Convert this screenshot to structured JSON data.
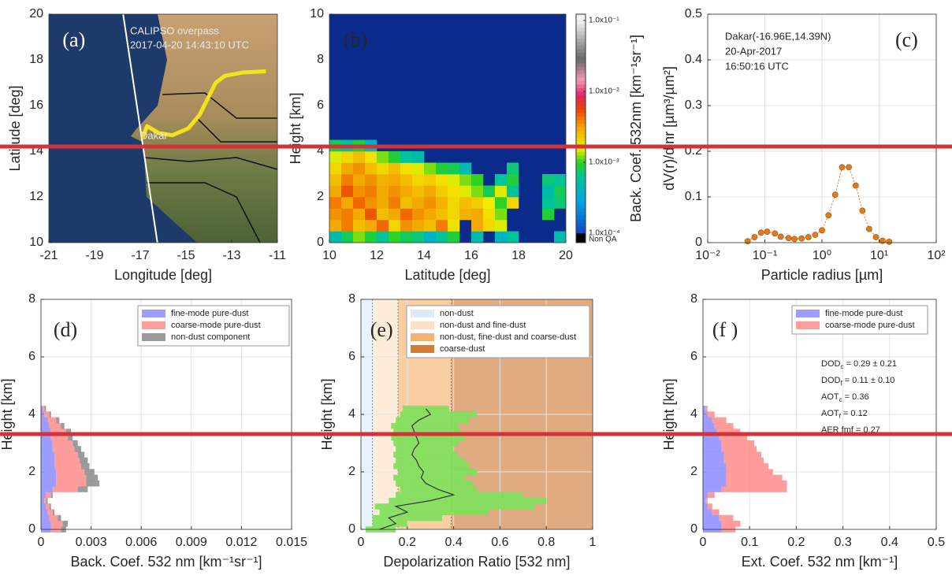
{
  "chart_data": [
    {
      "type": "map",
      "label": "(a)",
      "x_label": "Longitude [deg]",
      "y_label": "Latitude [deg]",
      "xlim": [
        -21,
        -11
      ],
      "xticks": [
        -21,
        -19,
        -17,
        -15,
        -13,
        -11
      ],
      "ylim": [
        10,
        20
      ],
      "yticks": [
        10,
        12,
        14,
        16,
        18,
        20
      ],
      "annotations": [
        "CALIPSO overpass",
        "2017-04-20 14:43:10 UTC",
        "Dakar"
      ],
      "series": [
        {
          "color": "#ffffff",
          "x": [
            -17.75,
            -16.25
          ],
          "y": [
            20,
            10
          ]
        },
        {
          "color": "#f2e41a",
          "x": [
            -16.9,
            -16.7,
            -16.2,
            -15.6,
            -14.9,
            -14.4,
            -14.0,
            -13.7,
            -13.3,
            -12.5,
            -11.5
          ],
          "y": [
            14.6,
            15.1,
            14.8,
            14.7,
            15.0,
            15.6,
            16.4,
            17.0,
            17.3,
            17.45,
            17.5
          ]
        }
      ]
    },
    {
      "type": "heatmap",
      "label": "(b)",
      "x_label": "Latitude [deg]",
      "y_label": "Height [km]",
      "xlim": [
        10,
        20
      ],
      "xticks": [
        10,
        12,
        14,
        16,
        18,
        20
      ],
      "ylim": [
        0,
        10
      ],
      "yticks": [
        0,
        2,
        4,
        6,
        8,
        10
      ],
      "x_bins": [
        10,
        10.5,
        11,
        11.5,
        12,
        12.5,
        13,
        13.5,
        14,
        14.5,
        15,
        15.5,
        16,
        16.5,
        17,
        17.5,
        18,
        18.5,
        19,
        19.5,
        20
      ],
      "y_bins": [
        0,
        0.5,
        1,
        1.5,
        2,
        2.5,
        3,
        3.5,
        4,
        4.5
      ],
      "values": [
        [
          0.0005,
          0.0008,
          0.0012,
          0.0009,
          0.0006,
          0.001,
          0.0008,
          0.0007,
          0.0004,
          0.0006,
          0.0009,
          null,
          0.0005,
          null,
          0.0004,
          0.0006,
          null,
          null,
          null,
          0.0005
        ],
        [
          0.003,
          0.004,
          0.0025,
          0.003,
          0.0045,
          0.002,
          0.0035,
          0.003,
          0.0025,
          0.004,
          0.0018,
          null,
          0.003,
          0.002,
          0.0015,
          null,
          null,
          null,
          null,
          null
        ],
        [
          0.0035,
          0.004,
          0.003,
          0.005,
          0.0025,
          0.003,
          0.0045,
          0.0035,
          0.003,
          0.0025,
          0.002,
          0.0028,
          0.003,
          0.0018,
          0.0012,
          null,
          null,
          null,
          0.0009,
          null
        ],
        [
          0.004,
          0.003,
          0.0045,
          0.0035,
          0.003,
          0.004,
          0.0025,
          0.003,
          0.0035,
          0.0028,
          0.002,
          0.0025,
          0.0022,
          0.0016,
          0.001,
          0.002,
          null,
          null,
          0.0006,
          0.0007
        ],
        [
          0.003,
          0.005,
          0.0035,
          0.004,
          0.003,
          0.0035,
          0.003,
          0.0025,
          0.003,
          0.0022,
          0.0018,
          0.0015,
          0.0012,
          0.0008,
          0.0015,
          0.0006,
          null,
          null,
          0.0005,
          0.0008
        ],
        [
          0.0025,
          0.004,
          0.003,
          0.0035,
          0.0028,
          0.003,
          0.0025,
          0.002,
          0.0022,
          0.0018,
          0.0015,
          0.0012,
          0.001,
          null,
          0.0006,
          0.0009,
          null,
          null,
          0.0007,
          0.0006
        ],
        [
          0.002,
          0.003,
          0.0035,
          0.0025,
          0.002,
          0.0025,
          0.0018,
          0.0015,
          0.0012,
          0.0009,
          0.0008,
          0.0005,
          null,
          null,
          null,
          0.0007,
          null,
          null,
          null,
          null
        ],
        [
          0.0015,
          0.002,
          0.0025,
          0.0018,
          0.0012,
          0.0009,
          0.0006,
          0.0005,
          null,
          null,
          null,
          null,
          null,
          null,
          null,
          null,
          null,
          null,
          null,
          null
        ],
        [
          0.0008,
          0.0006,
          0.0009,
          0.0004,
          null,
          null,
          null,
          null,
          null,
          null,
          null,
          null,
          null,
          null,
          null,
          null,
          null,
          null,
          null,
          null
        ]
      ],
      "colorbar": {
        "label": "Back. Coef. 532nm [km⁻¹sr⁻¹]",
        "log": true,
        "clim": [
          0.0001,
          0.1
        ],
        "ticks": [
          {
            "value": 0.1,
            "label": "1.0x10⁻¹"
          },
          {
            "value": 0.01,
            "label": "1.0x10⁻²"
          },
          {
            "value": 0.001,
            "label": "1.0x10⁻³"
          },
          {
            "value": 0.0001,
            "label": "1.0x10⁻⁴"
          }
        ],
        "nodata_label": "Non QA"
      }
    },
    {
      "type": "scatter",
      "label": "(c)",
      "x_label": "Particle radius [µm]",
      "y_label": "dV(r)/dlnr [µm³/µm²]",
      "xlog": true,
      "grid": true,
      "color": "#e07b1a",
      "xlim": [
        0.01,
        100
      ],
      "xticks": [
        {
          "value": 0.01,
          "label": "10⁻²"
        },
        {
          "value": 0.1,
          "label": "10⁻¹"
        },
        {
          "value": 1,
          "label": "10⁰"
        },
        {
          "value": 10,
          "label": "10¹"
        },
        {
          "value": 100,
          "label": "10²"
        }
      ],
      "ylim": [
        0,
        0.5
      ],
      "yticks": [
        0,
        0.1,
        0.2,
        0.3,
        0.4,
        0.5
      ],
      "annotations": [
        "Dakar(-16.96E,14.39N)",
        "20-Apr-2017",
        "16:50:16 UTC"
      ],
      "x": [
        0.05,
        0.066,
        0.086,
        0.11,
        0.15,
        0.19,
        0.26,
        0.33,
        0.44,
        0.58,
        0.76,
        1.0,
        1.3,
        1.7,
        2.25,
        2.95,
        3.9,
        5.1,
        6.7,
        8.8,
        11.5,
        15
      ],
      "y": [
        0.003,
        0.012,
        0.022,
        0.024,
        0.02,
        0.013,
        0.01,
        0.008,
        0.009,
        0.012,
        0.017,
        0.027,
        0.06,
        0.105,
        0.165,
        0.165,
        0.125,
        0.07,
        0.03,
        0.012,
        0.004,
        0.002
      ]
    },
    {
      "type": "profile",
      "label": "(d)",
      "x_label": "Back. Coef. 532 nm [km⁻¹sr⁻¹]",
      "y_label": "Height [km]",
      "grid": true,
      "xlim": [
        0,
        0.015
      ],
      "xticks": [
        0,
        0.003,
        0.006,
        0.009,
        0.012,
        0.015
      ],
      "ylim": [
        0,
        8
      ],
      "yticks": [
        0,
        2,
        4,
        6,
        8
      ],
      "heights": [
        0,
        0.2,
        0.4,
        0.6,
        0.8,
        1,
        1.2,
        1.4,
        1.6,
        1.8,
        2,
        2.2,
        2.4,
        2.6,
        2.8,
        3,
        3.2,
        3.4,
        3.6,
        3.8,
        4,
        4.2
      ],
      "series": [
        {
          "name": "fine-mode pure-dust",
          "color": "#8c8cff",
          "values": [
            0.0006,
            0.0006,
            0.0005,
            0.0004,
            0.0003,
            0.0002,
            0.0003,
            0.0007,
            0.0009,
            0.0009,
            0.0009,
            0.0008,
            0.0008,
            0.0008,
            0.0007,
            0.0007,
            0.0006,
            0.0006,
            0.0005,
            0.0004,
            0.0002,
            0.0001
          ]
        },
        {
          "name": "coarse-mode pure-dust",
          "color": "#ff8c8c",
          "values": [
            0.0006,
            0.0007,
            0.0005,
            0.0003,
            0.0002,
            0.0001,
            0.0003,
            0.0015,
            0.0018,
            0.0018,
            0.0017,
            0.0016,
            0.0015,
            0.0014,
            0.0013,
            0.0012,
            0.001,
            0.0009,
            0.0007,
            0.0005,
            0.0003,
            0.0001
          ]
        },
        {
          "name": "non-dust component",
          "color": "#8a8a8a",
          "values": [
            0.0003,
            0.0003,
            0.0002,
            0.0001,
            0.0001,
            0.0001,
            0.0001,
            0.0006,
            0.0008,
            0.0007,
            0.0006,
            0.0005,
            0.0005,
            0.0004,
            0.0004,
            0.0003,
            0.0003,
            0.0003,
            0.0002,
            0.0002,
            0.0001,
            0.0001
          ]
        }
      ]
    },
    {
      "type": "envelope",
      "label": "(e)",
      "x_label": "Depolarization Ratio [532 nm]",
      "y_label": "Height [km]",
      "grid": true,
      "xlim": [
        0,
        1
      ],
      "xticks": [
        0,
        0.2,
        0.4,
        0.6,
        0.8,
        1
      ],
      "ylim": [
        0,
        8
      ],
      "yticks": [
        0,
        2,
        4,
        6,
        8
      ],
      "bands": [
        {
          "name": "non-dust",
          "color": "#d6e7f7",
          "range": [
            0,
            0.05
          ]
        },
        {
          "name": "non-dust and fine-dust",
          "color": "#fbdcbc",
          "range": [
            0.05,
            0.16
          ]
        },
        {
          "name": "non-dust, fine-dust and coarse-dust",
          "color": "#f4a656",
          "range": [
            0.16,
            0.39
          ]
        },
        {
          "name": "coarse-dust",
          "color": "#c8661a",
          "range": [
            0.39,
            1
          ]
        }
      ],
      "heights": [
        0,
        0.2,
        0.4,
        0.6,
        0.8,
        1,
        1.2,
        1.4,
        1.6,
        1.8,
        2,
        2.2,
        2.4,
        2.6,
        2.8,
        3,
        3.2,
        3.4,
        3.6,
        3.8,
        4,
        4.2
      ],
      "envelope_color": "#7de05a",
      "line_color": "#333333",
      "mean": [
        0.08,
        0.15,
        0.12,
        0.2,
        0.15,
        0.3,
        0.4,
        0.33,
        0.28,
        0.26,
        0.27,
        0.25,
        0.24,
        0.22,
        0.23,
        0.25,
        0.24,
        0.23,
        0.22,
        0.25,
        0.3,
        0.28
      ],
      "low": [
        0.02,
        0.05,
        0.05,
        0.08,
        0.06,
        0.12,
        0.15,
        0.17,
        0.15,
        0.14,
        0.16,
        0.14,
        0.15,
        0.14,
        0.15,
        0.14,
        0.13,
        0.14,
        0.13,
        0.15,
        0.17,
        0.18
      ],
      "high": [
        0.15,
        0.2,
        0.35,
        0.55,
        0.75,
        0.8,
        0.7,
        0.5,
        0.48,
        0.45,
        0.5,
        0.47,
        0.45,
        0.42,
        0.4,
        0.42,
        0.45,
        0.43,
        0.42,
        0.47,
        0.5,
        0.38
      ]
    },
    {
      "type": "profile",
      "label": "(f )",
      "x_label": "Ext. Coef. 532 nm [km⁻¹]",
      "y_label": "Height [km]",
      "grid": true,
      "xlim": [
        0,
        0.5
      ],
      "xticks": [
        0,
        0.1,
        0.2,
        0.3,
        0.4,
        0.5
      ],
      "ylim": [
        0,
        8
      ],
      "yticks": [
        0,
        2,
        4,
        6,
        8
      ],
      "heights": [
        0,
        0.2,
        0.4,
        0.6,
        0.8,
        1,
        1.2,
        1.4,
        1.6,
        1.8,
        2,
        2.2,
        2.4,
        2.6,
        2.8,
        3,
        3.2,
        3.4,
        3.6,
        3.8,
        4,
        4.2
      ],
      "series": [
        {
          "name": "fine-mode pure-dust",
          "color": "#8c8cff",
          "values": [
            0.04,
            0.04,
            0.035,
            0.02,
            0.01,
            0.005,
            0.01,
            0.04,
            0.05,
            0.05,
            0.05,
            0.05,
            0.045,
            0.045,
            0.04,
            0.04,
            0.035,
            0.03,
            0.025,
            0.02,
            0.01,
            0.005
          ]
        },
        {
          "name": "coarse-mode pure-dust",
          "color": "#ff8c8c",
          "values": [
            0.03,
            0.04,
            0.03,
            0.015,
            0.01,
            0.005,
            0.015,
            0.14,
            0.13,
            0.12,
            0.1,
            0.09,
            0.085,
            0.08,
            0.075,
            0.07,
            0.06,
            0.05,
            0.04,
            0.03,
            0.015,
            0.005
          ]
        }
      ],
      "stats": [
        {
          "name": "DOD",
          "sub": "c",
          "text": " = 0.29 ± 0.21"
        },
        {
          "name": "DOD",
          "sub": "f",
          "text": " = 0.11 ± 0.10"
        },
        {
          "name": "AOT",
          "sub": "c",
          "text": " = 0.36"
        },
        {
          "name": "AOT",
          "sub": "f",
          "text": " = 0.12"
        },
        {
          "name": "AER fmf = 0.27"
        }
      ]
    }
  ]
}
